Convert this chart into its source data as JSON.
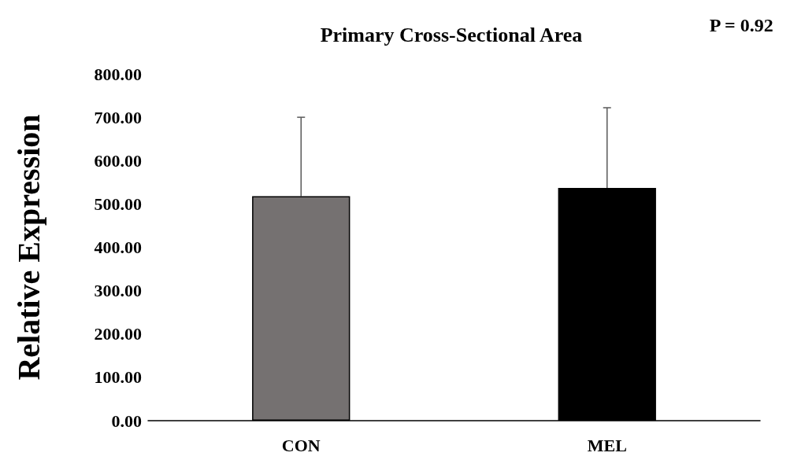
{
  "chart_data": {
    "type": "bar",
    "title": "Primary Cross-Sectional Area",
    "ylabel": "Relative Expression",
    "annotations": [
      "P = 0.92"
    ],
    "categories": [
      "CON",
      "MEL"
    ],
    "values": [
      518,
      537
    ],
    "colors": [
      "#757171",
      "#000000"
    ],
    "errors": [
      [
        518,
        700
      ],
      [
        537,
        722
      ]
    ],
    "ylim": [
      0,
      800
    ],
    "yticks": [
      {
        "value": 0,
        "label": "0.00"
      },
      {
        "value": 100,
        "label": "100.00"
      },
      {
        "value": 200,
        "label": "200.00"
      },
      {
        "value": 300,
        "label": "300.00"
      },
      {
        "value": 400,
        "label": "400.00"
      },
      {
        "value": 500,
        "label": "500.00"
      },
      {
        "value": 600,
        "label": "600.00"
      },
      {
        "value": 700,
        "label": "700.00"
      },
      {
        "value": 800,
        "label": "800.00"
      }
    ],
    "grid": false
  }
}
